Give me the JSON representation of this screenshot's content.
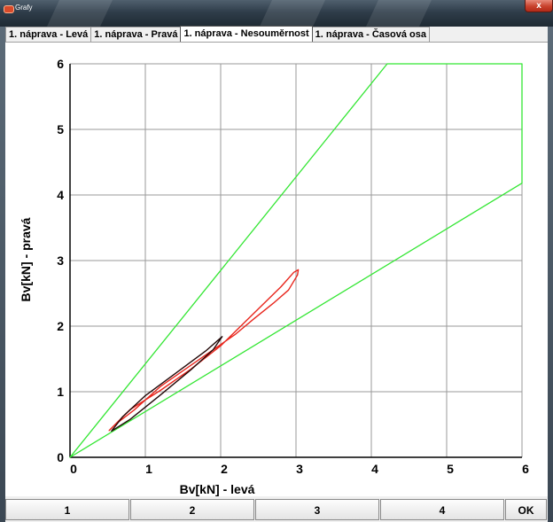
{
  "window": {
    "title": "Grafy",
    "close_glyph": "x"
  },
  "tabs": [
    {
      "label": "1. náprava - Levá",
      "active": false
    },
    {
      "label": "1. náprava - Pravá",
      "active": false
    },
    {
      "label": "1. náprava - Nesouměrnost",
      "active": true
    },
    {
      "label": "1. náprava - Časová osa",
      "active": false
    }
  ],
  "buttons": {
    "b1": "1",
    "b2": "2",
    "b3": "3",
    "b4": "4",
    "ok": "OK"
  },
  "colors": {
    "boundary": "#33e633",
    "red_curve": "#e8251c",
    "dark_curve": "#220808",
    "grid": "#9a9a9a"
  },
  "chart_data": {
    "type": "line",
    "xlabel": "Bv[kN] - levá",
    "ylabel": "Bv[kN] - pravá",
    "xlim": [
      0,
      6
    ],
    "ylim": [
      0,
      6
    ],
    "xticks": [
      0,
      1,
      2,
      3,
      4,
      5,
      6
    ],
    "yticks": [
      0,
      1,
      2,
      3,
      4,
      5,
      6
    ],
    "grid": true,
    "series": [
      {
        "color": "#33e633",
        "closed": true,
        "x": [
          0,
          4.21,
          6,
          6,
          0
        ],
        "y": [
          0,
          6,
          6,
          4.18,
          0
        ]
      },
      {
        "color": "#e8251c",
        "closed": true,
        "x": [
          0.52,
          0.8,
          1.2,
          1.6,
          2.0,
          2.4,
          2.8,
          2.97,
          3.03,
          3.02,
          2.9,
          2.7,
          2.45,
          2.2,
          1.95,
          1.6,
          1.2,
          0.85,
          0.6,
          0.52
        ],
        "y": [
          0.41,
          0.73,
          1.02,
          1.34,
          1.7,
          2.15,
          2.6,
          2.82,
          2.86,
          2.78,
          2.55,
          2.35,
          2.12,
          1.88,
          1.68,
          1.4,
          1.08,
          0.72,
          0.5,
          0.41
        ]
      },
      {
        "color": "#220808",
        "closed": true,
        "x": [
          0.55,
          0.8,
          1.2,
          1.6,
          1.9,
          2.02,
          2.0,
          1.8,
          1.4,
          1.0,
          0.7,
          0.55
        ],
        "y": [
          0.4,
          0.58,
          0.95,
          1.33,
          1.64,
          1.84,
          1.82,
          1.62,
          1.28,
          0.94,
          0.62,
          0.4
        ]
      }
    ]
  }
}
